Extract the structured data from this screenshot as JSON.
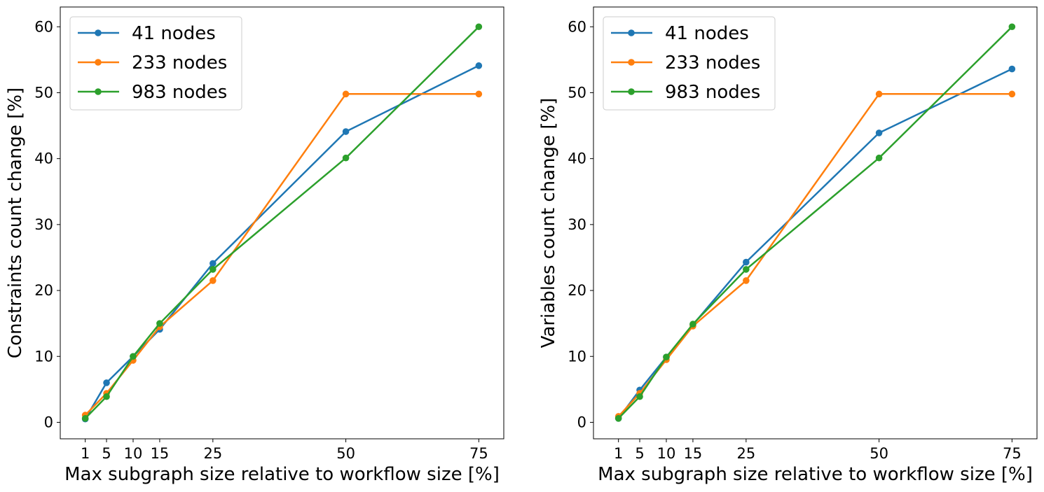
{
  "chart_data": [
    {
      "type": "line",
      "title": "",
      "xlabel": "Max subgraph size relative to workflow size [%]",
      "ylabel": "Constraints count change [%]",
      "xlim": [
        -3.7,
        79.7
      ],
      "ylim": [
        -2.5,
        63
      ],
      "x_ticks": [
        1,
        5,
        10,
        15,
        25,
        50,
        75
      ],
      "y_ticks": [
        0,
        10,
        20,
        30,
        40,
        50,
        60
      ],
      "grid": false,
      "legend_position": "upper-left",
      "x": [
        1,
        5,
        10,
        15,
        25,
        50,
        75
      ],
      "series": [
        {
          "name": "41 nodes",
          "color": "#1f77b4",
          "values": [
            0.5,
            6.0,
            10.0,
            14.1,
            24.1,
            44.1,
            54.1
          ]
        },
        {
          "name": "233 nodes",
          "color": "#ff7f0e",
          "values": [
            1.1,
            4.4,
            9.4,
            14.5,
            21.5,
            49.8,
            49.8
          ]
        },
        {
          "name": "983 nodes",
          "color": "#2ca02c",
          "values": [
            0.6,
            3.9,
            10.0,
            15.0,
            23.2,
            40.1,
            60.0
          ]
        }
      ]
    },
    {
      "type": "line",
      "title": "",
      "xlabel": "Max subgraph size relative to workflow size [%]",
      "ylabel": "Variables count change [%]",
      "xlim": [
        -3.7,
        79.7
      ],
      "ylim": [
        -2.5,
        63
      ],
      "x_ticks": [
        1,
        5,
        10,
        15,
        25,
        50,
        75
      ],
      "y_ticks": [
        0,
        10,
        20,
        30,
        40,
        50,
        60
      ],
      "grid": false,
      "legend_position": "upper-left",
      "x": [
        1,
        5,
        10,
        15,
        25,
        50,
        75
      ],
      "series": [
        {
          "name": "41 nodes",
          "color": "#1f77b4",
          "values": [
            0.6,
            4.9,
            9.9,
            14.8,
            24.3,
            43.9,
            53.6
          ]
        },
        {
          "name": "233 nodes",
          "color": "#ff7f0e",
          "values": [
            0.9,
            4.4,
            9.5,
            14.6,
            21.5,
            49.8,
            49.8
          ]
        },
        {
          "name": "983 nodes",
          "color": "#2ca02c",
          "values": [
            0.6,
            3.9,
            9.9,
            14.9,
            23.2,
            40.1,
            60.0
          ]
        }
      ]
    }
  ]
}
